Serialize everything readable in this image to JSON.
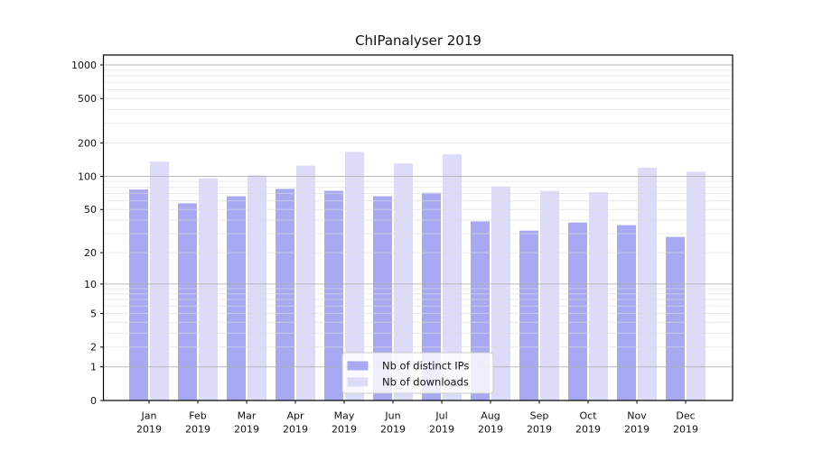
{
  "chart_data": {
    "type": "bar",
    "title": "ChIPanalyser 2019",
    "categories": [
      "Jan",
      "Feb",
      "Mar",
      "Apr",
      "May",
      "Jun",
      "Jul",
      "Aug",
      "Sep",
      "Oct",
      "Nov",
      "Dec"
    ],
    "year_label": "2019",
    "series": [
      {
        "name": "Nb of distinct IPs",
        "color": "#a9a9f3",
        "values": [
          76,
          57,
          66,
          77,
          74,
          66,
          71,
          39,
          32,
          38,
          36,
          28
        ]
      },
      {
        "name": "Nb of downloads",
        "color": "#dcdcf8",
        "values": [
          136,
          96,
          102,
          125,
          166,
          131,
          158,
          81,
          74,
          72,
          120,
          110
        ]
      }
    ],
    "y_axis": {
      "scale": "log1p",
      "ticks": [
        0,
        1,
        2,
        5,
        10,
        20,
        50,
        100,
        200,
        500,
        1000
      ],
      "tick_labels": [
        "0",
        "1",
        "2",
        "5",
        "10",
        "20",
        "50",
        "100",
        "200",
        "500",
        "1000"
      ],
      "ylim": [
        0,
        1230
      ],
      "major_grid_at": [
        1,
        10,
        100,
        1000
      ]
    },
    "grid": {
      "major_color": "#b0b0b0",
      "minor_color": "#dcdcdc"
    },
    "legend": {
      "position": "lower center",
      "labels": [
        "Nb of distinct IPs",
        "Nb of downloads"
      ]
    }
  }
}
